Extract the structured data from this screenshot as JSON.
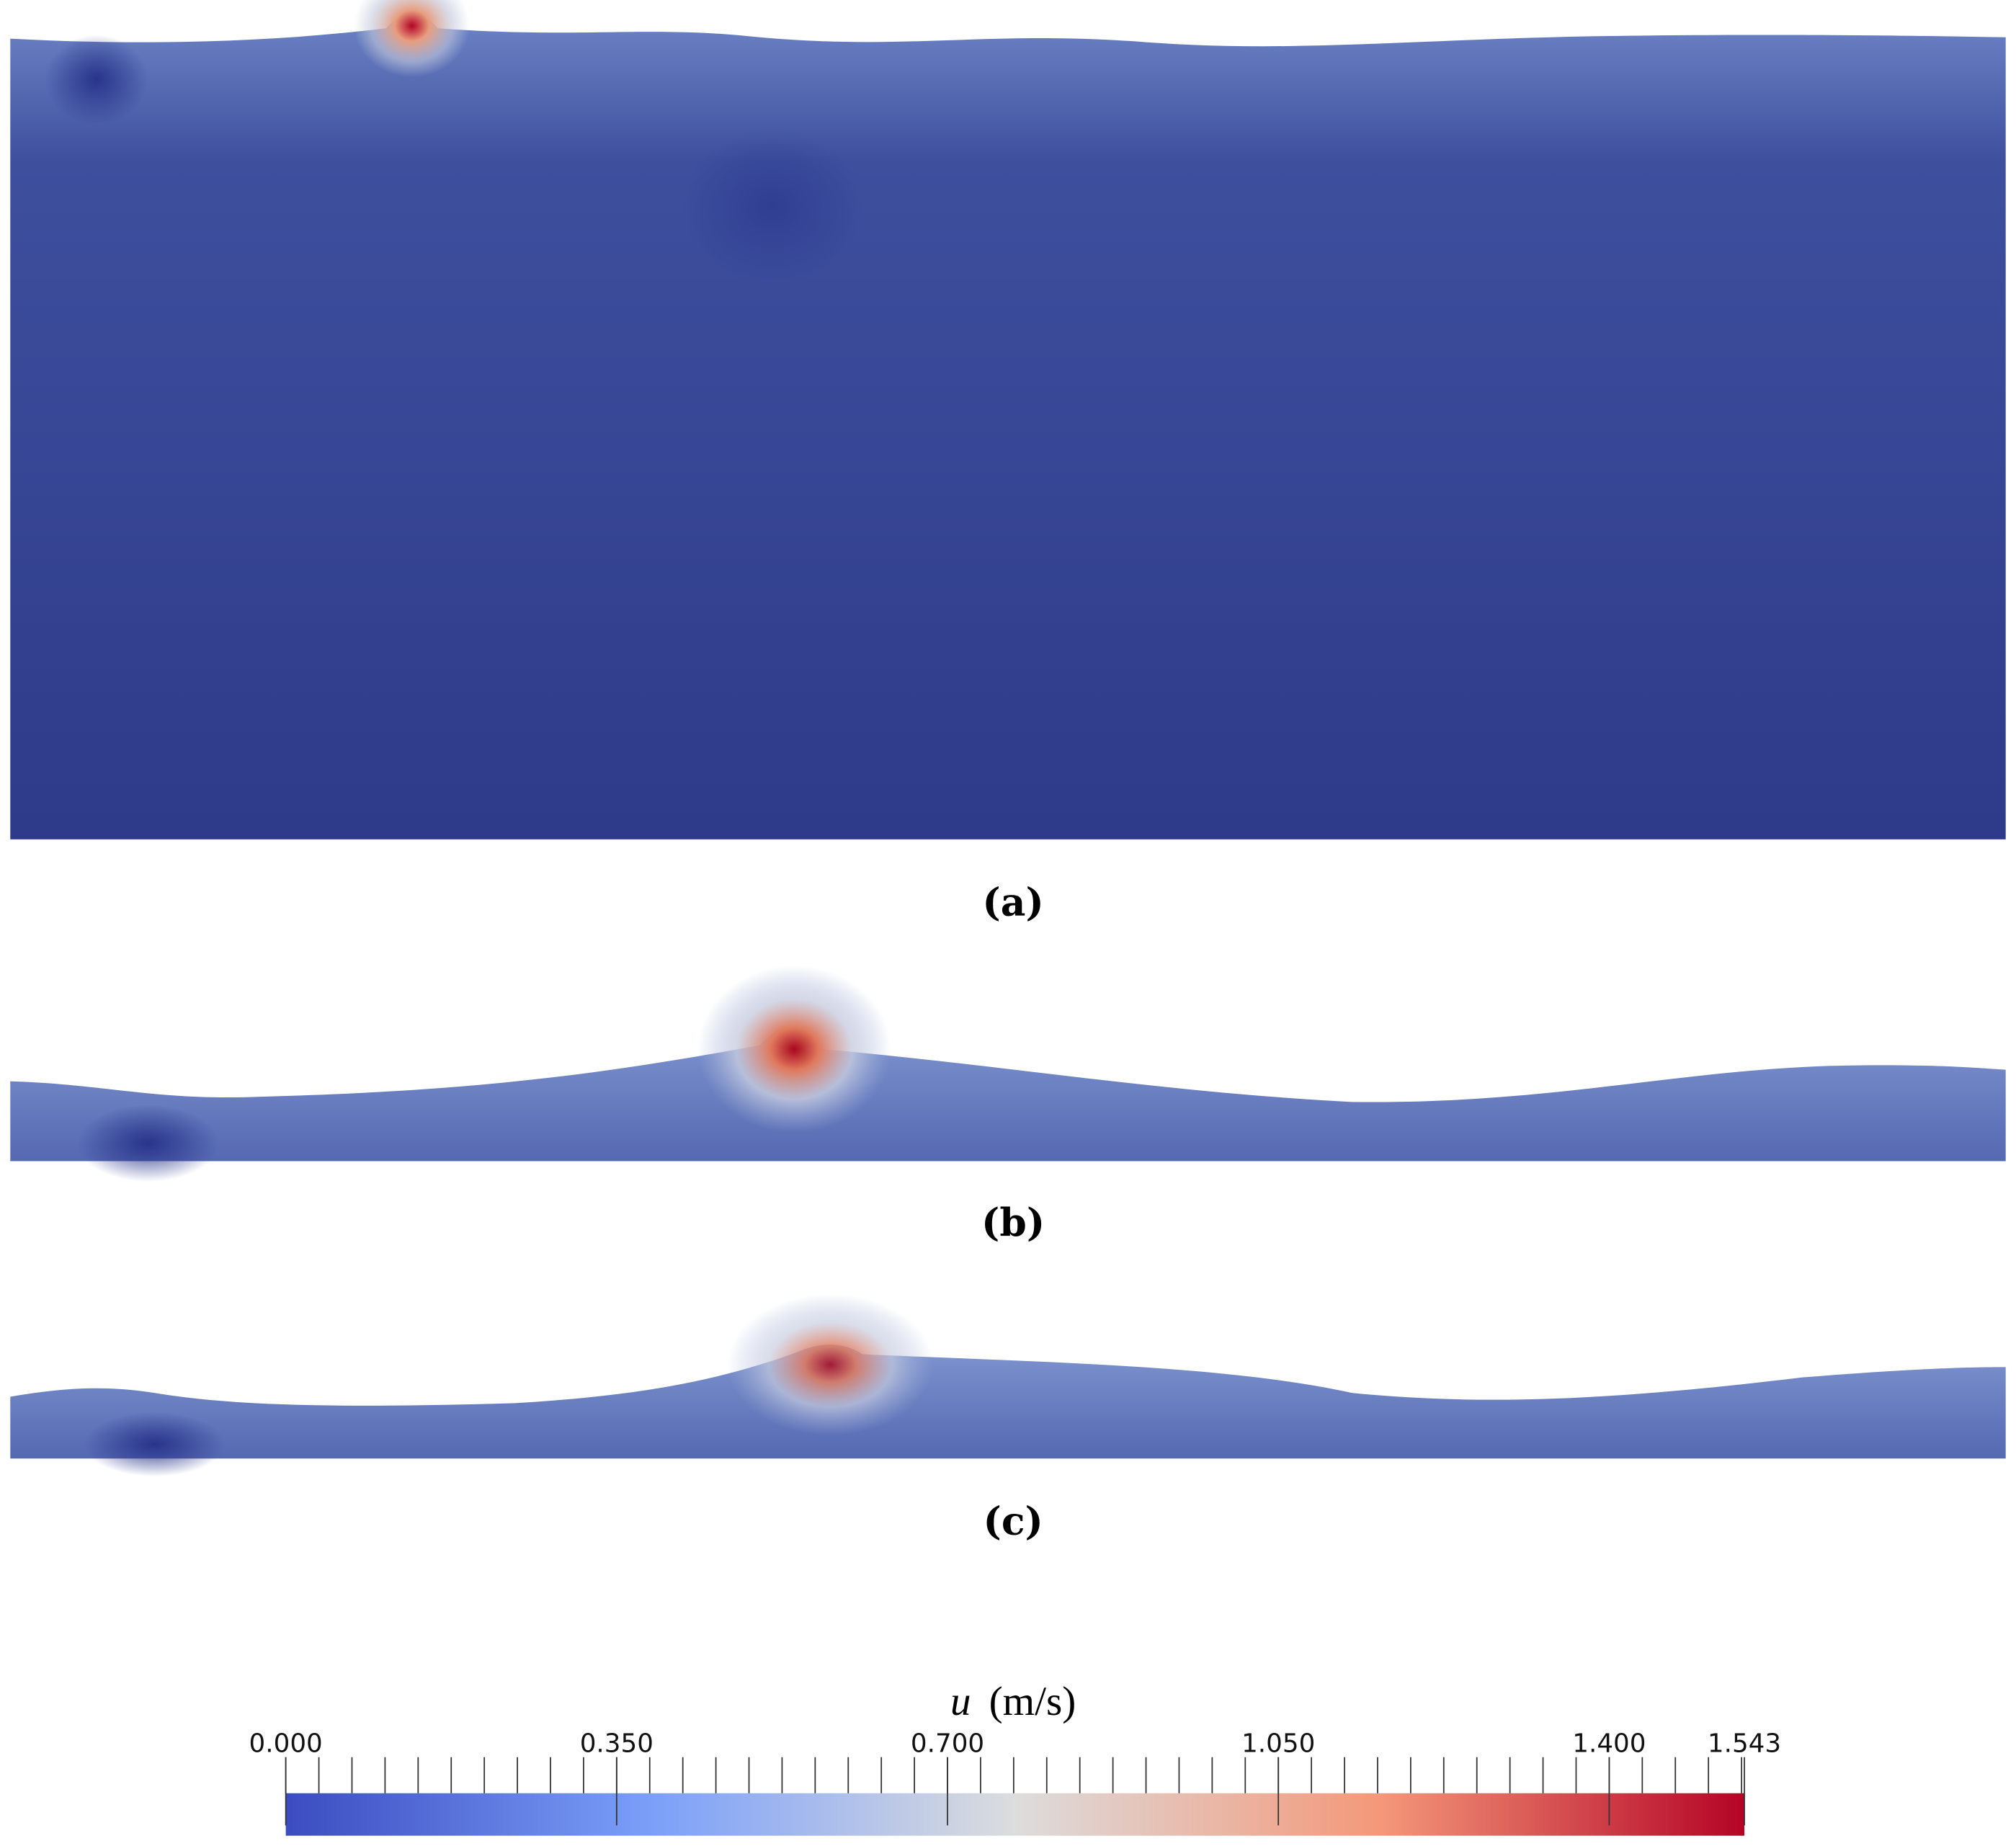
{
  "panels": [
    {
      "label": "(a)"
    },
    {
      "label": "(b)"
    },
    {
      "label": "(c)"
    }
  ],
  "colorbar": {
    "symbol": "u",
    "unit": "(m/s)",
    "range": [
      0,
      1.543
    ],
    "ticks": [
      {
        "value": 0,
        "label": "0.000"
      },
      {
        "value": 0.35,
        "label": "0.350"
      },
      {
        "value": 0.7,
        "label": "0.700"
      },
      {
        "value": 1.05,
        "label": "1.050"
      },
      {
        "value": 1.4,
        "label": "1.400"
      },
      {
        "value": 1.543,
        "label": "1.543"
      }
    ]
  }
}
